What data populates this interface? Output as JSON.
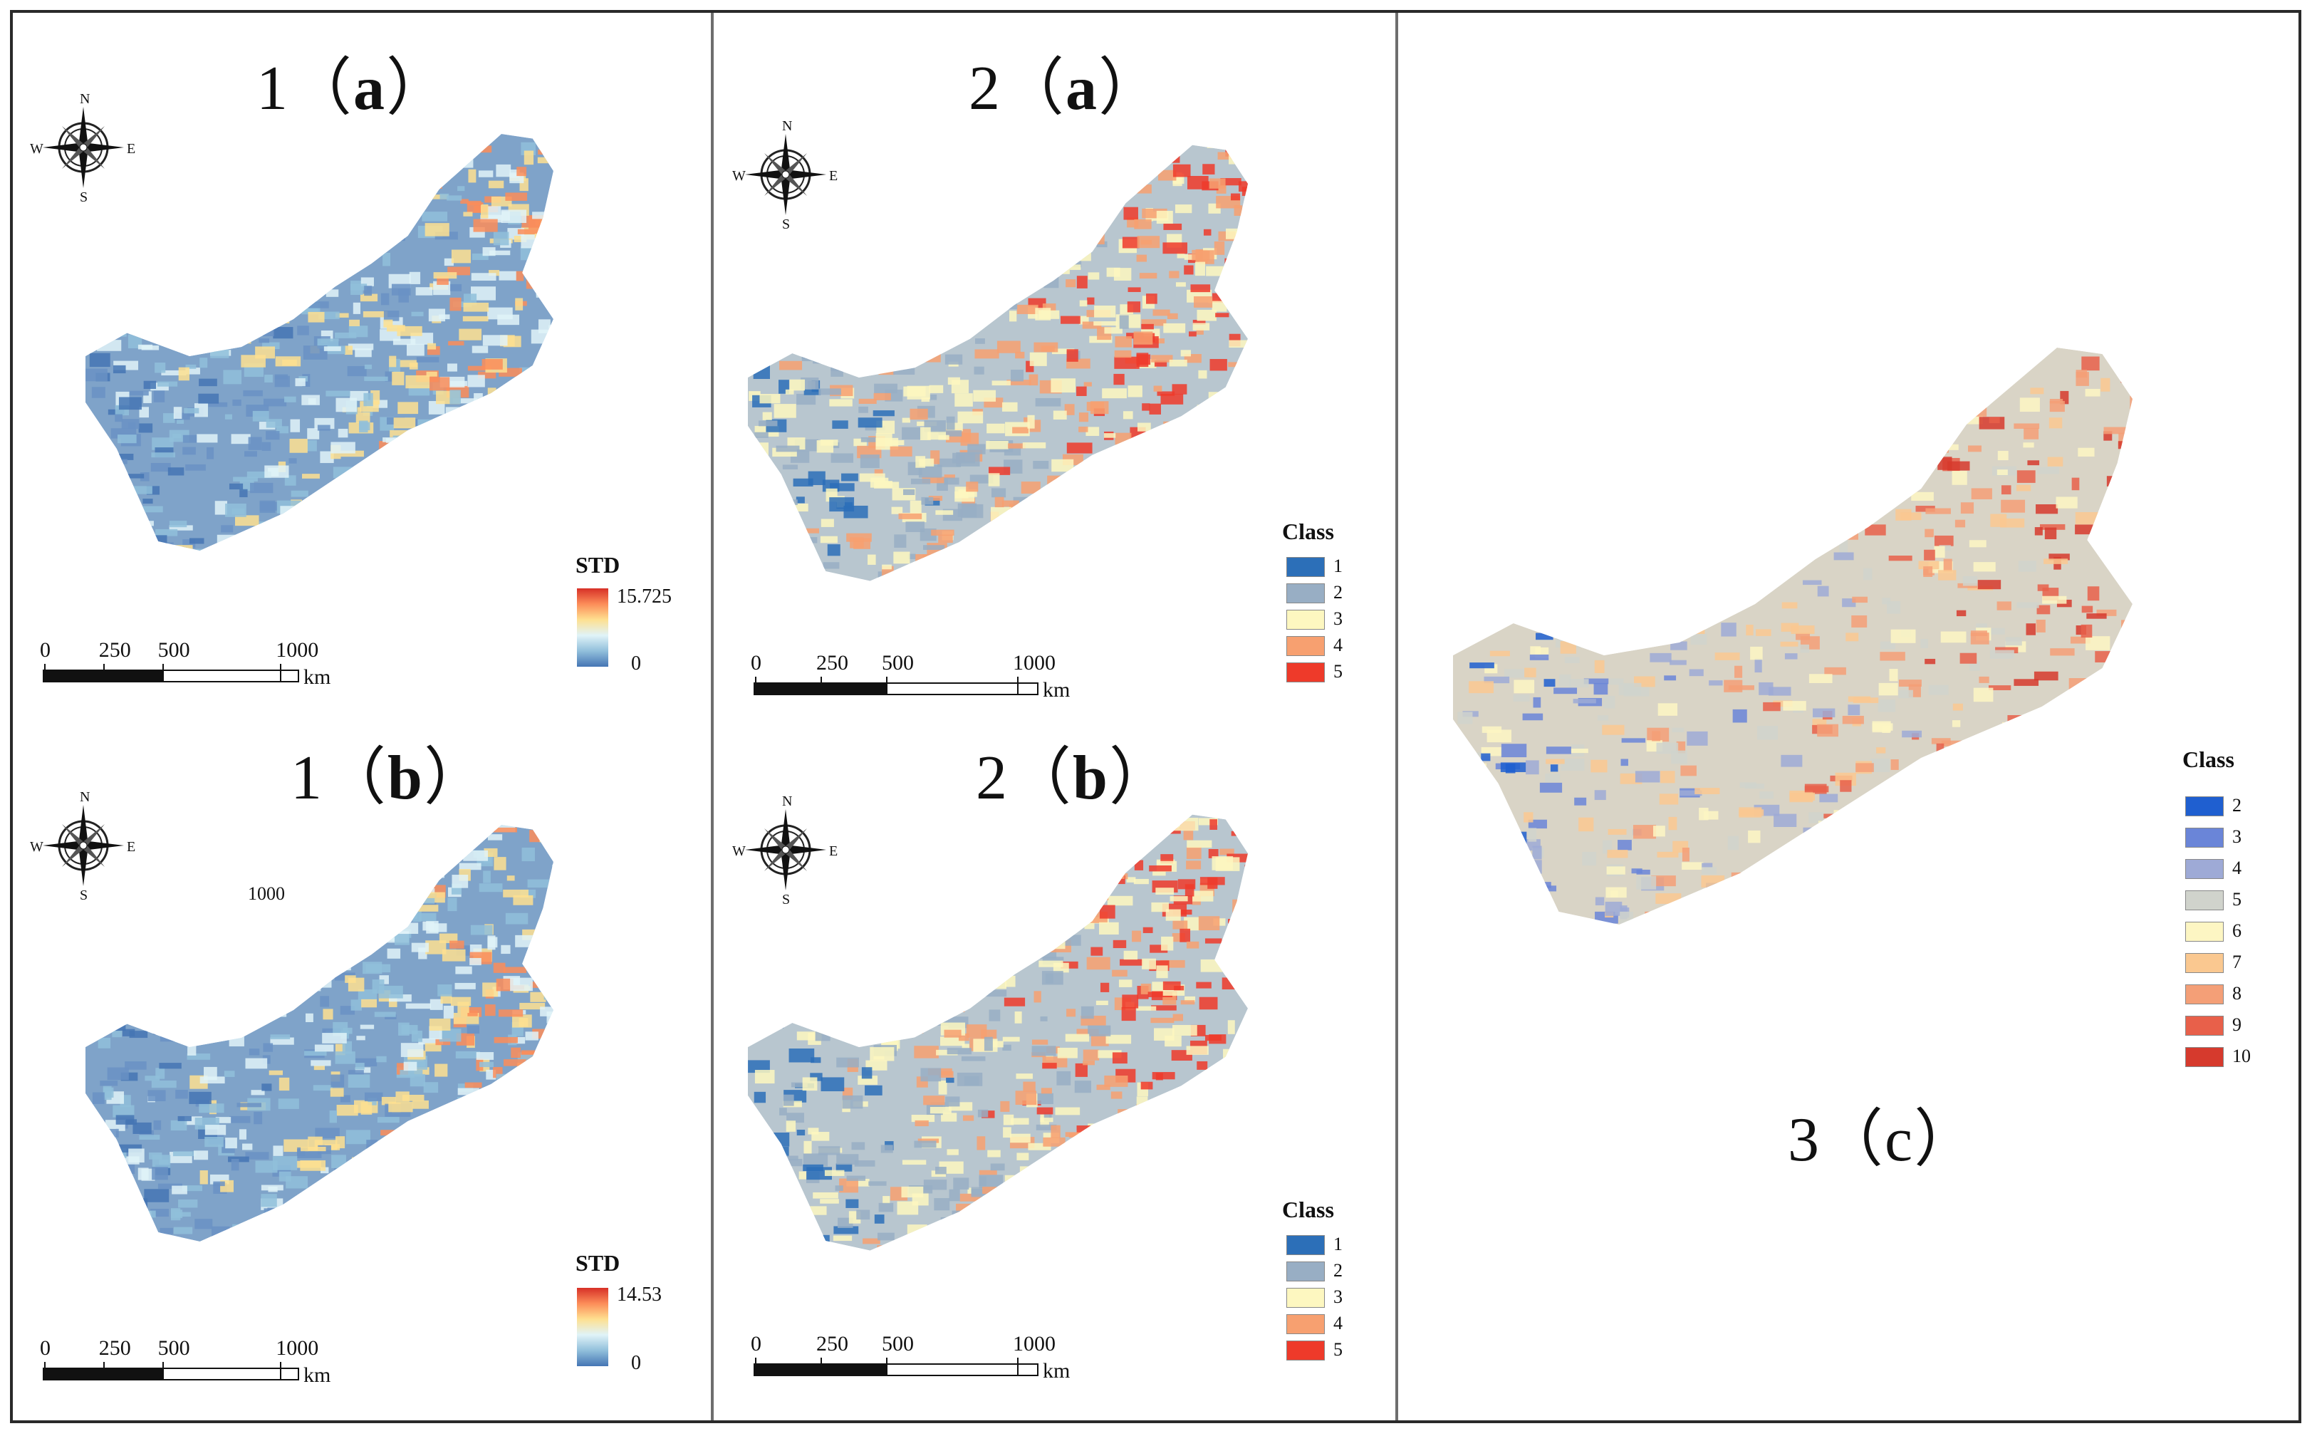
{
  "panels": {
    "p1a": {
      "title_num": "1",
      "title_open": "（",
      "title_letter": "a",
      "title_close": "）",
      "legend_title": "STD",
      "legend_max": "15.725",
      "legend_min": "0"
    },
    "p1b": {
      "title_num": "1",
      "title_open": "（",
      "title_letter": "b",
      "title_close": "）",
      "legend_title": "STD",
      "legend_max": "14.53",
      "legend_min": "0",
      "stray_label": "1000"
    },
    "p2a": {
      "title_num": "2",
      "title_open": "（",
      "title_letter": "a",
      "title_close": "）",
      "legend_title": "Class",
      "classes": [
        "1",
        "2",
        "3",
        "4",
        "5"
      ]
    },
    "p2b": {
      "title_num": "2",
      "title_open": "（",
      "title_letter": "b",
      "title_close": "）",
      "legend_title": "Class",
      "classes": [
        "1",
        "2",
        "3",
        "4",
        "5"
      ]
    },
    "p3c": {
      "title_num": "3",
      "title_open": "（",
      "title_letter": "c",
      "title_close": "）",
      "legend_title": "Class",
      "classes": [
        "2",
        "3",
        "4",
        "5",
        "6",
        "7",
        "8",
        "9",
        "10"
      ]
    }
  },
  "compass": {
    "n": "N",
    "s": "S",
    "e": "E",
    "w": "W"
  },
  "scale_bar": {
    "ticks": [
      "0",
      "250",
      "500",
      "1000"
    ],
    "unit": "km"
  },
  "colors": {
    "std_high": "#d73027",
    "std_low": "#4575b4",
    "class5": [
      "#2c6fb8",
      "#98aec4",
      "#fdf7c0",
      "#f7a070",
      "#ee3a2a"
    ],
    "class10": [
      "#1f5fd0",
      "#6a85d8",
      "#9eaad6",
      "#d0d3cc",
      "#fdf6c3",
      "#fac890",
      "#f49f77",
      "#e8604a",
      "#d63a2d"
    ]
  }
}
